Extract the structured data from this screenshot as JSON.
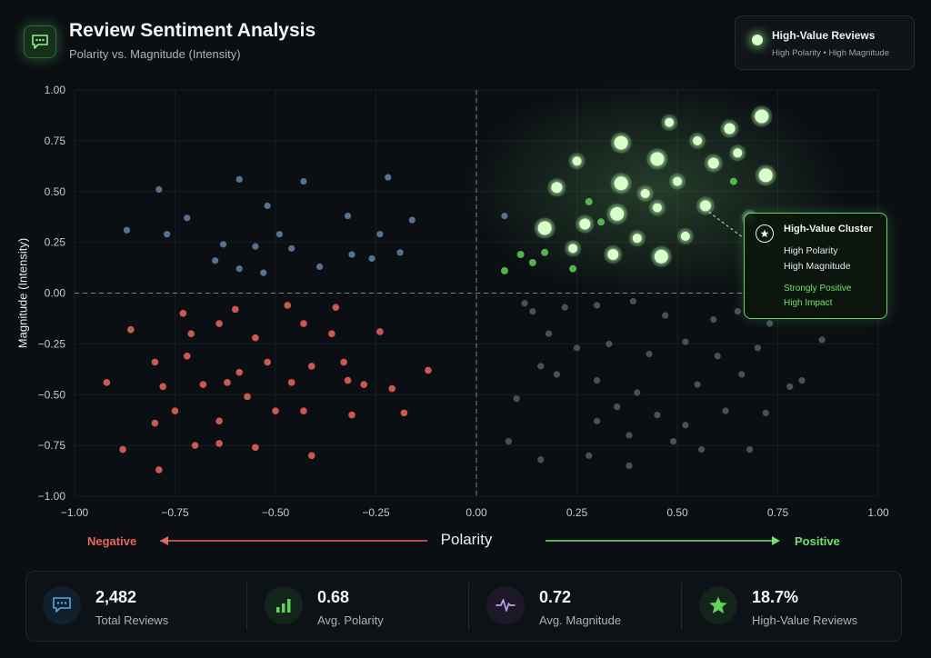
{
  "header": {
    "title": "Review Sentiment Analysis",
    "subtitle": "Polarity vs. Magnitude (Intensity)",
    "logo_icon": "chat-bubble-icon"
  },
  "legend": {
    "title": "High-Value Reviews",
    "subtitle": "High Polarity • High Magnitude"
  },
  "axis_hints": {
    "negative": "Negative",
    "positive": "Positive"
  },
  "callout": {
    "title": "High-Value Cluster",
    "line1": "High Polarity",
    "line2": "High Magnitude",
    "line3": "Strongly Positive",
    "line4": "High Impact"
  },
  "stats": [
    {
      "value": "2,482",
      "label": "Total Reviews",
      "icon": "chat-bubble-icon",
      "color": "#3b82c4"
    },
    {
      "value": "0.68",
      "label": "Avg. Polarity",
      "icon": "bar-chart-icon",
      "color": "#5fd35a"
    },
    {
      "value": "0.72",
      "label": "Avg. Magnitude",
      "icon": "pulse-icon",
      "color": "#b58bd8"
    },
    {
      "value": "18.7%",
      "label": "High-Value Reviews",
      "icon": "star-icon",
      "color": "#5fd35a"
    }
  ],
  "colors": {
    "negative": "#e0625a",
    "neutral_blue": "#5f7d9e",
    "neutral_gray": "#4d545b",
    "positive": "#6fdc66",
    "high_value": "#d7ffc9"
  },
  "chart_data": {
    "type": "scatter",
    "title": "Review Sentiment Analysis",
    "subtitle": "Polarity vs. Magnitude (Intensity)",
    "xlabel": "Polarity",
    "ylabel": "Magnitude (Intensity)",
    "xlim": [
      -1.0,
      1.0
    ],
    "ylim": [
      -1.0,
      1.0
    ],
    "xticks": [
      "−1.00",
      "−0.75",
      "−0.50",
      "−0.25",
      "0.00",
      "0.25",
      "0.50",
      "0.75",
      "1.00"
    ],
    "yticks": [
      "1.00",
      "0.75",
      "0.50",
      "0.25",
      "0.00",
      "−0.25",
      "−0.50",
      "−0.75",
      "−1.00"
    ],
    "grid": true,
    "series": [
      {
        "group": "high_value",
        "color": "#d7ffc9",
        "points": [
          [
            0.2,
            0.52
          ],
          [
            0.25,
            0.65
          ],
          [
            0.36,
            0.74
          ],
          [
            0.45,
            0.66
          ],
          [
            0.48,
            0.84
          ],
          [
            0.55,
            0.75
          ],
          [
            0.63,
            0.81
          ],
          [
            0.71,
            0.87
          ],
          [
            0.65,
            0.69
          ],
          [
            0.59,
            0.64
          ],
          [
            0.72,
            0.58
          ],
          [
            0.5,
            0.55
          ],
          [
            0.36,
            0.54
          ],
          [
            0.42,
            0.49
          ],
          [
            0.45,
            0.42
          ],
          [
            0.57,
            0.43
          ],
          [
            0.68,
            0.37
          ],
          [
            0.35,
            0.39
          ],
          [
            0.27,
            0.34
          ],
          [
            0.4,
            0.27
          ],
          [
            0.52,
            0.28
          ],
          [
            0.34,
            0.19
          ],
          [
            0.46,
            0.18
          ],
          [
            0.24,
            0.22
          ],
          [
            0.17,
            0.32
          ]
        ]
      },
      {
        "group": "positive",
        "color": "#5fcf5a",
        "points": [
          [
            0.07,
            0.11
          ],
          [
            0.11,
            0.19
          ],
          [
            0.14,
            0.15
          ],
          [
            0.17,
            0.2
          ],
          [
            0.24,
            0.12
          ],
          [
            0.28,
            0.45
          ],
          [
            0.64,
            0.55
          ],
          [
            0.31,
            0.35
          ]
        ]
      },
      {
        "group": "neutral_blue",
        "color": "#5f7d9e",
        "points": [
          [
            -0.87,
            0.31
          ],
          [
            -0.79,
            0.51
          ],
          [
            -0.72,
            0.37
          ],
          [
            -0.65,
            0.16
          ],
          [
            -0.63,
            0.24
          ],
          [
            -0.59,
            0.56
          ],
          [
            -0.55,
            0.23
          ],
          [
            -0.53,
            0.1
          ],
          [
            -0.52,
            0.43
          ],
          [
            -0.49,
            0.29
          ],
          [
            -0.46,
            0.22
          ],
          [
            -0.43,
            0.55
          ],
          [
            -0.39,
            0.13
          ],
          [
            -0.32,
            0.38
          ],
          [
            -0.31,
            0.19
          ],
          [
            -0.26,
            0.17
          ],
          [
            -0.22,
            0.57
          ],
          [
            -0.19,
            0.2
          ],
          [
            -0.16,
            0.36
          ],
          [
            -0.77,
            0.29
          ],
          [
            -0.59,
            0.12
          ],
          [
            -0.24,
            0.29
          ],
          [
            0.07,
            0.38
          ]
        ]
      },
      {
        "group": "negative",
        "color": "#e0625a",
        "points": [
          [
            -0.92,
            -0.44
          ],
          [
            -0.86,
            -0.18
          ],
          [
            -0.8,
            -0.34
          ],
          [
            -0.78,
            -0.46
          ],
          [
            -0.72,
            -0.31
          ],
          [
            -0.73,
            -0.1
          ],
          [
            -0.68,
            -0.45
          ],
          [
            -0.64,
            -0.15
          ],
          [
            -0.64,
            -0.63
          ],
          [
            -0.62,
            -0.44
          ],
          [
            -0.59,
            -0.39
          ],
          [
            -0.57,
            -0.51
          ],
          [
            -0.55,
            -0.22
          ],
          [
            -0.52,
            -0.34
          ],
          [
            -0.5,
            -0.58
          ],
          [
            -0.46,
            -0.44
          ],
          [
            -0.43,
            -0.58
          ],
          [
            -0.41,
            -0.36
          ],
          [
            -0.36,
            -0.2
          ],
          [
            -0.32,
            -0.43
          ],
          [
            -0.28,
            -0.45
          ],
          [
            -0.24,
            -0.19
          ],
          [
            -0.21,
            -0.47
          ],
          [
            -0.18,
            -0.59
          ],
          [
            -0.12,
            -0.38
          ],
          [
            -0.8,
            -0.64
          ],
          [
            -0.7,
            -0.75
          ],
          [
            -0.88,
            -0.77
          ],
          [
            -0.64,
            -0.74
          ],
          [
            -0.55,
            -0.76
          ],
          [
            -0.41,
            -0.8
          ],
          [
            -0.79,
            -0.87
          ],
          [
            -0.75,
            -0.58
          ],
          [
            -0.6,
            -0.08
          ],
          [
            -0.47,
            -0.06
          ],
          [
            -0.35,
            -0.07
          ],
          [
            -0.31,
            -0.6
          ],
          [
            -0.71,
            -0.2
          ],
          [
            -0.33,
            -0.34
          ],
          [
            -0.43,
            -0.15
          ]
        ]
      },
      {
        "group": "neutral_gray",
        "color": "#4d545b",
        "points": [
          [
            0.12,
            -0.05
          ],
          [
            0.22,
            -0.07
          ],
          [
            0.3,
            -0.06
          ],
          [
            0.39,
            -0.04
          ],
          [
            0.47,
            -0.11
          ],
          [
            0.18,
            -0.2
          ],
          [
            0.25,
            -0.27
          ],
          [
            0.33,
            -0.25
          ],
          [
            0.43,
            -0.3
          ],
          [
            0.52,
            -0.24
          ],
          [
            0.6,
            -0.31
          ],
          [
            0.7,
            -0.27
          ],
          [
            0.2,
            -0.4
          ],
          [
            0.3,
            -0.43
          ],
          [
            0.4,
            -0.49
          ],
          [
            0.55,
            -0.45
          ],
          [
            0.66,
            -0.4
          ],
          [
            0.78,
            -0.46
          ],
          [
            0.81,
            -0.43
          ],
          [
            0.35,
            -0.56
          ],
          [
            0.45,
            -0.6
          ],
          [
            0.52,
            -0.65
          ],
          [
            0.62,
            -0.58
          ],
          [
            0.72,
            -0.59
          ],
          [
            0.86,
            -0.23
          ],
          [
            0.3,
            -0.63
          ],
          [
            0.38,
            -0.7
          ],
          [
            0.28,
            -0.8
          ],
          [
            0.38,
            -0.85
          ],
          [
            0.49,
            -0.73
          ],
          [
            0.56,
            -0.77
          ],
          [
            0.68,
            -0.77
          ],
          [
            0.08,
            -0.73
          ],
          [
            0.16,
            -0.82
          ],
          [
            0.1,
            -0.52
          ],
          [
            0.59,
            -0.13
          ],
          [
            0.65,
            -0.09
          ],
          [
            0.73,
            -0.15
          ],
          [
            0.14,
            -0.09
          ],
          [
            0.16,
            -0.36
          ]
        ]
      }
    ]
  }
}
